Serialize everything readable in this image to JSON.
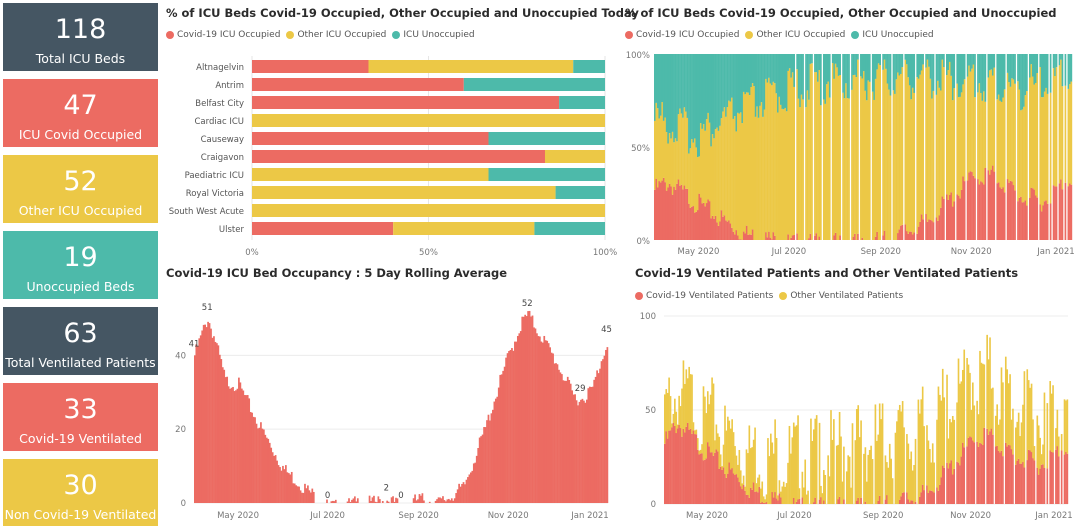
{
  "colors": {
    "covid": "#ec6b62",
    "other": "#ecc846",
    "unocc": "#4dbaaa",
    "dark": "#455663"
  },
  "kpis": [
    {
      "value": "118",
      "label": "Total ICU Beds",
      "color": "#455663"
    },
    {
      "value": "47",
      "label": "ICU Covid Occupied",
      "color": "#ec6b62"
    },
    {
      "value": "52",
      "label": "Other ICU Occupied",
      "color": "#ecc846"
    },
    {
      "value": "19",
      "label": "Unoccupied Beds",
      "color": "#4dbaaa"
    },
    {
      "value": "63",
      "label": "Total Ventilated Patients",
      "color": "#455663"
    },
    {
      "value": "33",
      "label": "Covid-19 Ventilated",
      "color": "#ec6b62"
    },
    {
      "value": "30",
      "label": "Non Covid-19 Ventilated",
      "color": "#ecc846"
    }
  ],
  "chart_data": [
    {
      "type": "bar",
      "orientation": "horizontal-stacked-100",
      "title": "% of ICU Beds Covid-19 Occupied, Other Occupied and Unoccupied Today",
      "legend": [
        "Covid-19 ICU Occupied",
        "Other ICU Occupied",
        "ICU Unoccupied"
      ],
      "categories": [
        "Altnagelvin",
        "Antrim",
        "Belfast City",
        "Cardiac ICU",
        "Causeway",
        "Craigavon",
        "Paediatric ICU",
        "Royal Victoria",
        "South West Acute",
        "Ulster"
      ],
      "series": [
        {
          "name": "Covid-19 ICU Occupied",
          "values": [
            33,
            60,
            87,
            0,
            67,
            83,
            0,
            0,
            0,
            40
          ]
        },
        {
          "name": "Other ICU Occupied",
          "values": [
            58,
            0,
            0,
            100,
            0,
            17,
            67,
            86,
            100,
            40
          ]
        },
        {
          "name": "ICU Unoccupied",
          "values": [
            9,
            40,
            13,
            0,
            33,
            0,
            33,
            14,
            0,
            20
          ]
        }
      ],
      "xticks": [
        "0%",
        "50%",
        "100%"
      ]
    },
    {
      "type": "bar",
      "orientation": "vertical-stacked-100",
      "title": "% of ICU Beds Covid-19 Occupied, Other Occupied and Unoccupied",
      "legend": [
        "Covid-19 ICU Occupied",
        "Other ICU Occupied",
        "ICU Unoccupied"
      ],
      "yticks": [
        "100%",
        "50%",
        "0%"
      ],
      "xticks": [
        "May 2020",
        "Jul 2020",
        "Sep 2020",
        "Nov 2020",
        "Jan 2021"
      ],
      "x_range": [
        "2020-04-01",
        "2021-01-07"
      ],
      "covid_pct_keypoints": [
        [
          "2020-04-01",
          30
        ],
        [
          "2020-04-10",
          34
        ],
        [
          "2020-05-01",
          22
        ],
        [
          "2020-06-01",
          6
        ],
        [
          "2020-07-01",
          1
        ],
        [
          "2020-08-01",
          1
        ],
        [
          "2020-09-01",
          2
        ],
        [
          "2020-10-01",
          12
        ],
        [
          "2020-11-01",
          36
        ],
        [
          "2020-11-15",
          38
        ],
        [
          "2020-12-05",
          26
        ],
        [
          "2020-12-20",
          24
        ],
        [
          "2021-01-07",
          38
        ]
      ],
      "unocc_pct_keypoints": [
        [
          "2020-04-01",
          40
        ],
        [
          "2020-05-01",
          50
        ],
        [
          "2020-06-01",
          35
        ],
        [
          "2020-07-01",
          25
        ],
        [
          "2020-08-01",
          20
        ],
        [
          "2020-09-01",
          20
        ],
        [
          "2020-10-01",
          18
        ],
        [
          "2020-11-01",
          20
        ],
        [
          "2020-12-01",
          25
        ],
        [
          "2021-01-07",
          18
        ]
      ]
    },
    {
      "type": "bar",
      "title": "Covid-19 ICU Bed Occupancy : 5 Day Rolling Average",
      "yticks": [
        "40",
        "20",
        "0"
      ],
      "ylim": [
        0,
        55
      ],
      "xticks": [
        "May 2020",
        "Jul 2020",
        "Sep 2020",
        "Nov 2020",
        "Jan 2021"
      ],
      "x_range": [
        "2020-04-01",
        "2021-01-07"
      ],
      "keypoints": [
        [
          "2020-04-01",
          41
        ],
        [
          "2020-04-07",
          48
        ],
        [
          "2020-04-10",
          51
        ],
        [
          "2020-04-15",
          45
        ],
        [
          "2020-04-22",
          34
        ],
        [
          "2020-05-01",
          33
        ],
        [
          "2020-05-15",
          22
        ],
        [
          "2020-06-01",
          10
        ],
        [
          "2020-06-15",
          5
        ],
        [
          "2020-07-01",
          0
        ],
        [
          "2020-07-10",
          0
        ],
        [
          "2020-07-20",
          1
        ],
        [
          "2020-08-01",
          1
        ],
        [
          "2020-08-10",
          2
        ],
        [
          "2020-08-20",
          0
        ],
        [
          "2020-09-01",
          2
        ],
        [
          "2020-09-15",
          1
        ],
        [
          "2020-10-01",
          5
        ],
        [
          "2020-10-15",
          20
        ],
        [
          "2020-10-31",
          40
        ],
        [
          "2020-11-10",
          50
        ],
        [
          "2020-11-14",
          52
        ],
        [
          "2020-11-25",
          45
        ],
        [
          "2020-12-05",
          38
        ],
        [
          "2020-12-15",
          30
        ],
        [
          "2020-12-20",
          29
        ],
        [
          "2020-12-28",
          32
        ],
        [
          "2021-01-07",
          45
        ]
      ],
      "data_labels": [
        {
          "date": "2020-04-01",
          "text": "41"
        },
        {
          "date": "2020-04-10",
          "text": "51"
        },
        {
          "date": "2020-07-01",
          "text": "0"
        },
        {
          "date": "2020-08-10",
          "text": "2"
        },
        {
          "date": "2020-08-20",
          "text": "0"
        },
        {
          "date": "2020-11-14",
          "text": "52"
        },
        {
          "date": "2020-12-20",
          "text": "29"
        },
        {
          "date": "2021-01-07",
          "text": "45"
        }
      ]
    },
    {
      "type": "bar",
      "orientation": "vertical-stacked",
      "title": "Covid-19 Ventilated Patients and Other Ventilated Patients",
      "legend": [
        "Covid-19 Ventilated Patients",
        "Other Ventilated Patients"
      ],
      "yticks": [
        "100",
        "50",
        "0"
      ],
      "ylim": [
        0,
        100
      ],
      "xticks": [
        "May 2020",
        "Jul 2020",
        "Sep 2020",
        "Nov 2020",
        "Jan 2021"
      ],
      "x_range": [
        "2020-04-01",
        "2021-01-07"
      ],
      "covid_keypoints": [
        [
          "2020-04-01",
          35
        ],
        [
          "2020-04-10",
          46
        ],
        [
          "2020-05-01",
          30
        ],
        [
          "2020-06-01",
          10
        ],
        [
          "2020-07-01",
          1
        ],
        [
          "2020-08-01",
          1
        ],
        [
          "2020-09-01",
          2
        ],
        [
          "2020-10-01",
          8
        ],
        [
          "2020-11-01",
          35
        ],
        [
          "2020-11-12",
          40
        ],
        [
          "2020-12-01",
          28
        ],
        [
          "2020-12-20",
          24
        ],
        [
          "2021-01-07",
          35
        ]
      ],
      "other_keypoints": [
        [
          "2020-04-01",
          25
        ],
        [
          "2020-04-20",
          28
        ],
        [
          "2020-05-15",
          30
        ],
        [
          "2020-07-01",
          35
        ],
        [
          "2020-08-01",
          40
        ],
        [
          "2020-09-01",
          45
        ],
        [
          "2020-10-01",
          45
        ],
        [
          "2020-11-01",
          45
        ],
        [
          "2020-11-15",
          42
        ],
        [
          "2020-12-15",
          40
        ],
        [
          "2021-01-07",
          32
        ]
      ]
    }
  ]
}
